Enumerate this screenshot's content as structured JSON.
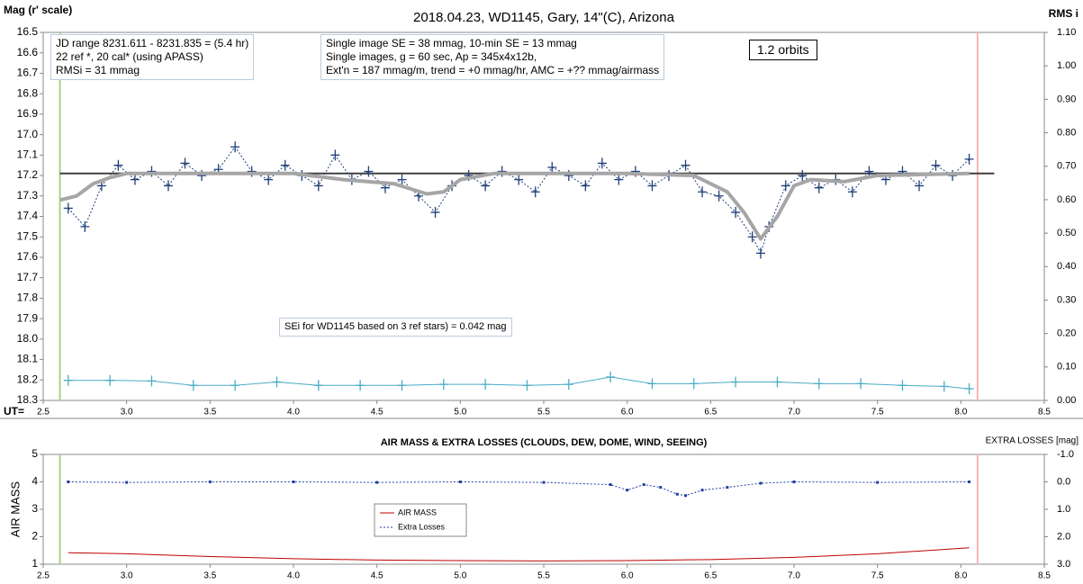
{
  "chart_data": [
    {
      "type": "line",
      "title": "2018.04.23,  WD1145, Gary, 14\"(C), Arizona",
      "ylabel": "Mag (r' scale)",
      "y2label": "RMS i",
      "xlabel": "UT=",
      "xlim": [
        2.5,
        8.5
      ],
      "xticks": [
        2.5,
        {
          "value": 3,
          "label": "3.0"
        },
        3.5,
        {
          "value": 4,
          "label": "4.0"
        },
        4.5,
        {
          "value": 5,
          "label": "5.0"
        },
        5.5,
        {
          "value": 6,
          "label": "6.0"
        },
        6.5,
        {
          "value": 7,
          "label": "7.0"
        },
        7.5,
        {
          "value": 8,
          "label": "8.0"
        },
        8.5
      ],
      "ylim": [
        18.3,
        16.5
      ],
      "yticks": [
        16.5,
        16.6,
        16.7,
        16.8,
        16.9,
        {
          "value": 17,
          "label": "17.0"
        },
        17.1,
        17.2,
        17.3,
        17.4,
        17.5,
        17.6,
        17.7,
        17.8,
        17.9,
        {
          "value": 18,
          "label": "18.0"
        },
        18.1,
        18.2,
        18.3
      ],
      "y2lim": [
        0,
        1.1
      ],
      "y2ticks": [
        {
          "value": 1.1,
          "label": "1.10"
        },
        {
          "value": 1,
          "label": "1.00"
        },
        {
          "value": 0.9,
          "label": "0.90"
        },
        {
          "value": 0.8,
          "label": "0.80"
        },
        {
          "value": 0.7,
          "label": "0.70"
        },
        {
          "value": 0.6,
          "label": "0.60"
        },
        {
          "value": 0.5,
          "label": "0.50"
        },
        {
          "value": 0.4,
          "label": "0.40"
        },
        {
          "value": 0.3,
          "label": "0.30"
        },
        {
          "value": 0.2,
          "label": "0.20"
        },
        {
          "value": 0.1,
          "label": "0.10"
        },
        {
          "value": 0,
          "label": "0.00"
        }
      ],
      "reference_line": 17.19,
      "vlines": [
        {
          "value": 2.6,
          "color": "#a9d18e"
        },
        {
          "value": 8.1,
          "color": "#f4b6b6"
        }
      ],
      "annotations": [
        [
          "JD range  8231.611 - 8231.835  = (5.4 hr)",
          "22 ref *, 20 cal* (using APASS)",
          "RMSi = 31 mmag"
        ],
        [
          "Single image SE = 38 mmag, 10-min SE = 13 mmag",
          "Single images, g = 60 sec, Ap = 345x4x12b,",
          "Ext'n = 187 mmag/m, trend = +0 mmag/hr, AMC = +?? mmag/airmass"
        ],
        [
          "1.2 orbits"
        ],
        [
          "SEi for WD1145 based on 3 ref stars) = 0.042 mag"
        ]
      ],
      "series": [
        {
          "color": "#1f3f7a",
          "marker": "+",
          "dashed": true,
          "x": [
            2.65,
            2.75,
            2.85,
            2.95,
            3.05,
            3.15,
            3.25,
            3.35,
            3.45,
            3.55,
            3.65,
            3.75,
            3.85,
            3.95,
            4.05,
            4.15,
            4.25,
            4.35,
            4.45,
            4.55,
            4.65,
            4.75,
            4.85,
            4.95,
            5.05,
            5.15,
            5.25,
            5.35,
            5.45,
            5.55,
            5.65,
            5.75,
            5.85,
            5.95,
            6.05,
            6.15,
            6.25,
            6.35,
            6.45,
            6.55,
            6.65,
            6.75,
            6.8,
            6.85,
            6.95,
            7.05,
            7.15,
            7.25,
            7.35,
            7.45,
            7.55,
            7.65,
            7.75,
            7.85,
            7.95,
            8.05
          ],
          "values": [
            17.36,
            17.45,
            17.25,
            17.15,
            17.22,
            17.18,
            17.25,
            17.14,
            17.2,
            17.17,
            17.06,
            17.18,
            17.22,
            17.15,
            17.2,
            17.25,
            17.1,
            17.22,
            17.18,
            17.26,
            17.22,
            17.3,
            17.38,
            17.25,
            17.2,
            17.25,
            17.18,
            17.22,
            17.28,
            17.16,
            17.2,
            17.25,
            17.14,
            17.22,
            17.18,
            17.25,
            17.2,
            17.15,
            17.28,
            17.3,
            17.38,
            17.5,
            17.58,
            17.45,
            17.25,
            17.2,
            17.26,
            17.22,
            17.28,
            17.18,
            17.22,
            17.18,
            17.25,
            17.15,
            17.2,
            17.12
          ]
        },
        {
          "color": "#a6a6a6",
          "width": 4,
          "x": [
            2.6,
            2.7,
            2.8,
            2.9,
            3.0,
            3.5,
            4.0,
            4.3,
            4.6,
            4.8,
            4.9,
            5.0,
            5.2,
            6.0,
            6.4,
            6.6,
            6.7,
            6.8,
            6.9,
            7.0,
            7.1,
            7.3,
            7.5,
            8.05
          ],
          "values": [
            17.32,
            17.3,
            17.24,
            17.21,
            17.19,
            17.19,
            17.19,
            17.22,
            17.24,
            17.29,
            17.28,
            17.22,
            17.19,
            17.19,
            17.2,
            17.28,
            17.38,
            17.51,
            17.4,
            17.25,
            17.22,
            17.23,
            17.2,
            17.19
          ]
        },
        {
          "color": "#4bacc6",
          "marker": "+",
          "axis": "y2",
          "x": [
            2.65,
            2.9,
            3.15,
            3.4,
            3.65,
            3.9,
            4.15,
            4.4,
            4.65,
            4.9,
            5.15,
            5.4,
            5.65,
            5.9,
            6.15,
            6.4,
            6.65,
            6.9,
            7.15,
            7.4,
            7.65,
            7.9,
            8.05
          ],
          "values": [
            0.06,
            0.06,
            0.058,
            0.045,
            0.045,
            0.055,
            0.045,
            0.045,
            0.045,
            0.048,
            0.048,
            0.045,
            0.048,
            0.07,
            0.05,
            0.05,
            0.055,
            0.055,
            0.05,
            0.05,
            0.045,
            0.042,
            0.035
          ]
        }
      ]
    },
    {
      "type": "line",
      "title": "AIR MASS & EXTRA LOSSES (CLOUDS, DEW, DOME, WIND, SEEING)",
      "ylabel": "AIR MASS",
      "y2label": "EXTRA LOSSES [mag]",
      "xlim": [
        2.5,
        8.5
      ],
      "xticks": [
        2.5,
        {
          "value": 3,
          "label": "3.0"
        },
        3.5,
        {
          "value": 4,
          "label": "4.0"
        },
        4.5,
        {
          "value": 5,
          "label": "5.0"
        },
        5.5,
        {
          "value": 6,
          "label": "6.0"
        },
        6.5,
        {
          "value": 7,
          "label": "7.0"
        },
        7.5,
        {
          "value": 8,
          "label": "8.0"
        },
        8.5
      ],
      "ylim": [
        1,
        5
      ],
      "yticks": [
        1,
        2,
        3,
        4,
        5
      ],
      "y2lim": [
        3,
        -1
      ],
      "y2ticks": [
        {
          "value": -1,
          "label": "-1.0"
        },
        {
          "value": 0,
          "label": "0.0"
        },
        {
          "value": 1,
          "label": "1.0"
        },
        {
          "value": 2,
          "label": "2.0"
        },
        {
          "value": 3,
          "label": "3.0"
        }
      ],
      "vlines": [
        {
          "value": 2.6,
          "color": "#a9d18e"
        },
        {
          "value": 8.1,
          "color": "#f4b6b6"
        }
      ],
      "series": [
        {
          "name": "AIR MASS",
          "color": "#c00000",
          "x": [
            2.65,
            3.0,
            3.5,
            4.0,
            4.5,
            5.0,
            5.5,
            6.0,
            6.5,
            7.0,
            7.5,
            8.05
          ],
          "values": [
            1.42,
            1.38,
            1.28,
            1.2,
            1.15,
            1.13,
            1.12,
            1.13,
            1.17,
            1.25,
            1.38,
            1.6
          ]
        },
        {
          "name": "Extra Losses",
          "color": "#1f3fa0",
          "marker": "dot",
          "dashed": true,
          "axis": "y2",
          "x": [
            2.65,
            3.0,
            3.5,
            4.0,
            4.5,
            5.0,
            5.5,
            5.9,
            6.0,
            6.1,
            6.2,
            6.3,
            6.35,
            6.45,
            6.6,
            6.8,
            7.0,
            7.5,
            8.05
          ],
          "values": [
            0,
            0.02,
            0,
            0,
            0.02,
            0,
            0.02,
            0.1,
            0.3,
            0.1,
            0.2,
            0.45,
            0.5,
            0.3,
            0.2,
            0.05,
            0,
            0.02,
            0
          ]
        }
      ]
    }
  ]
}
